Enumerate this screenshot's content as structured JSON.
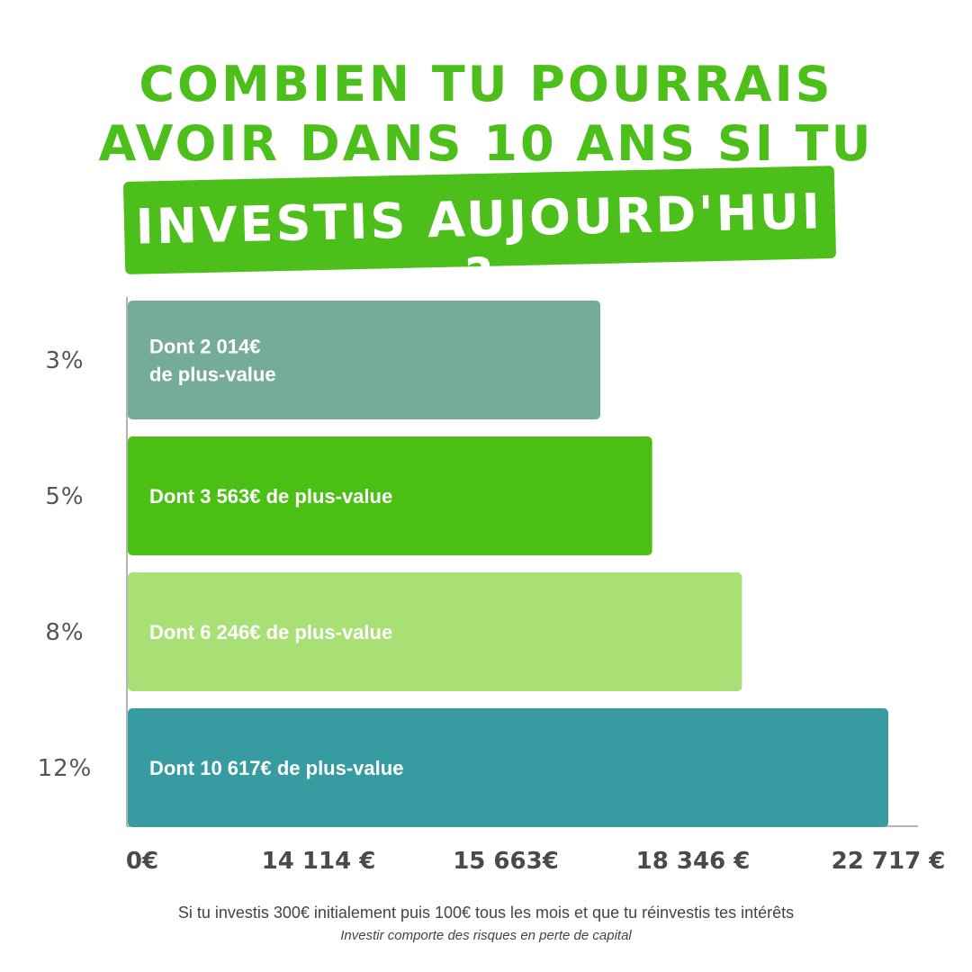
{
  "title_line_1": "COMBIEN TU POURRAIS",
  "title_line_2": "AVOIR DANS 10 ANS SI TU",
  "title_highlight": "INVESTIS AUJOURD'HUI ?",
  "footnote": "Si tu investis 300€ initialement puis 100€ tous les mois et que tu réinvestis tes intérêts",
  "disclaimer": "Investir comporte des risques en perte de capital",
  "chart_data": {
    "type": "bar",
    "orientation": "horizontal",
    "categories": [
      "3%",
      "5%",
      "8%",
      "12%"
    ],
    "values": [
      14114,
      15663,
      18346,
      22717
    ],
    "bar_labels": [
      [
        "Dont 2 014€",
        "de plus-value"
      ],
      [
        "Dont 3  563€ de plus-value"
      ],
      [
        "Dont 6  246€ de plus-value"
      ],
      [
        "Dont 10  617€ de plus-value"
      ]
    ],
    "bar_colors": [
      "#75ac97",
      "#4cbf15",
      "#a9e075",
      "#379ca2"
    ],
    "x_tick_labels": [
      "0€",
      "14 114 €",
      "15 663€",
      "18 346 €",
      "22 717 €"
    ],
    "title": "",
    "xlabel": "",
    "ylabel": "",
    "legend": "none",
    "grid": false
  }
}
